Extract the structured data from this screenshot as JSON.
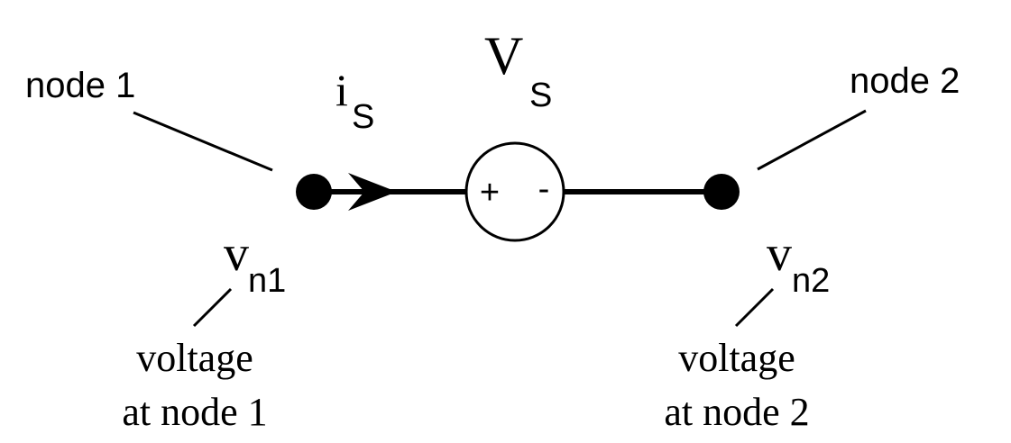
{
  "diagram": {
    "node1": {
      "label": "node 1",
      "voltage_symbol": "v",
      "voltage_subscript": "n1",
      "description_line1": "voltage",
      "description_line2": "at node 1"
    },
    "node2": {
      "label": "node 2",
      "voltage_symbol": "v",
      "voltage_subscript": "n2",
      "description_line1": "voltage",
      "description_line2": "at node 2"
    },
    "current": {
      "symbol": "i",
      "subscript": "S"
    },
    "source": {
      "symbol": "V",
      "subscript": "S",
      "plus_sign": "+",
      "minus_sign": "-"
    },
    "colors": {
      "stroke": "#000000",
      "background": "#ffffff"
    }
  }
}
